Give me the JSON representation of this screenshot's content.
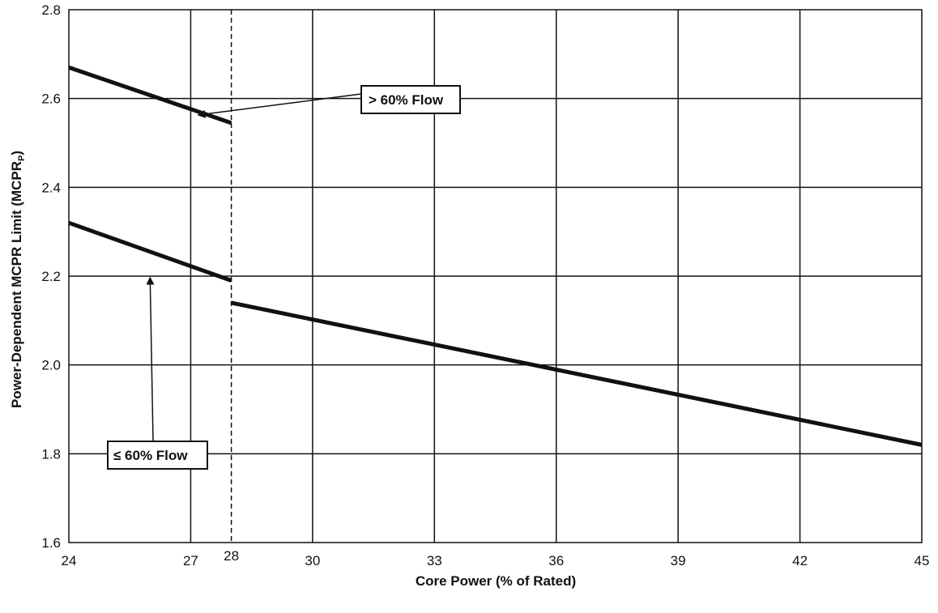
{
  "chart_data": {
    "type": "line",
    "xlabel": "Core Power (% of Rated)",
    "ylabel": "Power-Dependent MCPR Limit (MCPR",
    "ylabel_sub": "P",
    "ylabel_close": ")",
    "xlim": [
      24,
      45
    ],
    "ylim": [
      1.6,
      2.8
    ],
    "grid": true,
    "x_ticks": [
      24,
      27,
      28,
      30,
      33,
      36,
      39,
      42,
      45
    ],
    "y_ticks": [
      1.6,
      1.8,
      2.0,
      2.2,
      2.4,
      2.6,
      2.8
    ],
    "x_tick_labels": [
      "24",
      "27",
      "28",
      "30",
      "33",
      "36",
      "39",
      "42",
      "45"
    ],
    "y_tick_labels": [
      "1.6",
      "1.8",
      "2.0",
      "2.2",
      "2.4",
      "2.6",
      "2.8"
    ],
    "reference_line_x": 28,
    "series": [
      {
        "name": "> 60% Flow",
        "x": [
          24,
          28
        ],
        "y": [
          2.67,
          2.545
        ]
      },
      {
        "name": "≤ 60% Flow",
        "x": [
          24,
          28
        ],
        "y": [
          2.32,
          2.19
        ]
      },
      {
        "x": [
          28,
          45
        ],
        "y": [
          2.14,
          1.82
        ]
      }
    ],
    "annotations": [
      {
        "text": "> 60% Flow",
        "arrow_to": [
          27.2,
          2.585
        ]
      },
      {
        "text": "≤ 60% Flow",
        "arrow_to": [
          26.0,
          2.21
        ]
      }
    ]
  }
}
